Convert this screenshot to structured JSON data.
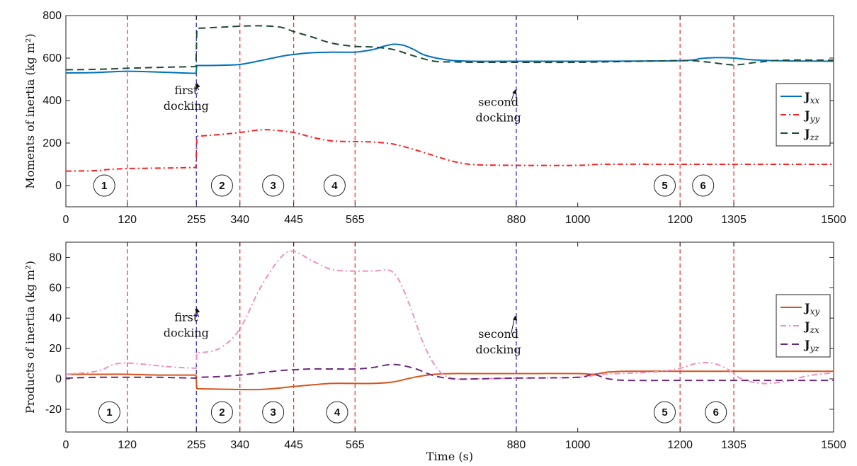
{
  "chart_data": [
    {
      "type": "line",
      "ylabel": "Moments of inertia (kg m²)",
      "xlabel": "",
      "xlim": [
        0,
        1500
      ],
      "ylim": [
        -100,
        800
      ],
      "xticks": [
        0,
        120,
        255,
        340,
        445,
        565,
        880,
        1000,
        1200,
        1305,
        1500
      ],
      "yticks": [
        0,
        200,
        400,
        600,
        800
      ],
      "legend_position": "right",
      "series": [
        {
          "name": "J",
          "sub": "xx",
          "color": "#0072BD",
          "dash": "solid",
          "x": [
            0,
            60,
            120,
            180,
            254,
            256,
            300,
            340,
            380,
            420,
            445,
            480,
            520,
            565,
            600,
            620,
            640,
            660,
            680,
            700,
            730,
            760,
            800,
            880,
            1000,
            1200,
            1240,
            1270,
            1305,
            1340,
            1400,
            1500
          ],
          "y": [
            530,
            532,
            538,
            534,
            528,
            565,
            566,
            570,
            588,
            608,
            617,
            625,
            628,
            628,
            640,
            655,
            665,
            660,
            640,
            615,
            597,
            588,
            585,
            585,
            585,
            588,
            598,
            602,
            600,
            592,
            587,
            585
          ]
        },
        {
          "name": "J",
          "sub": "yy",
          "color": "#FF1F1F",
          "dash": "8,4,2,4",
          "x": [
            0,
            60,
            80,
            120,
            180,
            254,
            256,
            300,
            340,
            380,
            400,
            445,
            480,
            520,
            565,
            600,
            640,
            680,
            720,
            760,
            800,
            880,
            1000,
            1050,
            1200,
            1305,
            1500
          ],
          "y": [
            68,
            70,
            75,
            80,
            82,
            85,
            232,
            240,
            250,
            262,
            262,
            250,
            228,
            210,
            207,
            205,
            195,
            170,
            140,
            112,
            98,
            95,
            95,
            100,
            100,
            100,
            100
          ]
        },
        {
          "name": "J",
          "sub": "zz",
          "color": "#1F4A37",
          "dash": "10,6",
          "x": [
            0,
            60,
            120,
            180,
            254,
            256,
            300,
            340,
            380,
            420,
            445,
            480,
            520,
            565,
            600,
            640,
            680,
            720,
            760,
            800,
            880,
            1000,
            1200,
            1250,
            1305,
            1350,
            1400,
            1500
          ],
          "y": [
            545,
            547,
            552,
            556,
            560,
            740,
            745,
            750,
            752,
            745,
            725,
            700,
            670,
            655,
            652,
            640,
            610,
            585,
            582,
            580,
            580,
            580,
            588,
            582,
            568,
            580,
            590,
            590
          ]
        }
      ],
      "vlines": [
        {
          "x": 120,
          "color": "#FF3030"
        },
        {
          "x": 255,
          "color": "#3030E0"
        },
        {
          "x": 340,
          "color": "#FF3030"
        },
        {
          "x": 445,
          "color": "#FF3030"
        },
        {
          "x": 565,
          "color": "#FF3030"
        },
        {
          "x": 880,
          "color": "#3030E0"
        },
        {
          "x": 1200,
          "color": "#FF3030"
        },
        {
          "x": 1305,
          "color": "#FF3030"
        }
      ],
      "phase_markers": [
        {
          "label": "1",
          "x": 75,
          "y": 0
        },
        {
          "label": "2",
          "x": 305,
          "y": 0
        },
        {
          "label": "3",
          "x": 405,
          "y": 0
        },
        {
          "label": "4",
          "x": 525,
          "y": 0
        },
        {
          "label": "5",
          "x": 1170,
          "y": 0
        },
        {
          "label": "6",
          "x": 1245,
          "y": 0
        }
      ],
      "annotations": [
        {
          "lines": [
            "first",
            "docking"
          ],
          "text_x": 235,
          "text_y": 430,
          "arrow_to_x": 255,
          "arrow_to_y": 485
        },
        {
          "lines": [
            "second",
            "docking"
          ],
          "text_x": 845,
          "text_y": 375,
          "arrow_to_x": 880,
          "arrow_to_y": 455
        }
      ]
    },
    {
      "type": "line",
      "ylabel": "Products of inertia (kg m²)",
      "xlabel": "Time (s)",
      "xlim": [
        0,
        1500
      ],
      "ylim": [
        -35,
        90
      ],
      "xticks": [
        0,
        120,
        255,
        340,
        445,
        565,
        880,
        1000,
        1200,
        1305,
        1500
      ],
      "yticks": [
        -20,
        0,
        20,
        40,
        60,
        80
      ],
      "legend_position": "right",
      "series": [
        {
          "name": "J",
          "sub": "xy",
          "color": "#D95319",
          "dash": "solid",
          "x": [
            0,
            60,
            120,
            180,
            254,
            256,
            300,
            340,
            380,
            420,
            445,
            480,
            520,
            565,
            600,
            640,
            680,
            720,
            760,
            800,
            880,
            1000,
            1030,
            1060,
            1100,
            1200,
            1305,
            1500
          ],
          "y": [
            3,
            3,
            3,
            2.5,
            2.5,
            -6.5,
            -6.8,
            -7,
            -7,
            -6,
            -5,
            -4,
            -3,
            -3,
            -3,
            -2,
            1,
            3,
            3.5,
            3.5,
            3.5,
            3.5,
            3,
            4.5,
            5,
            5,
            5,
            5
          ]
        },
        {
          "name": "J",
          "sub": "zx",
          "color": "#F28FC0",
          "dash": "8,4,2,4",
          "x": [
            0,
            60,
            100,
            140,
            200,
            254,
            256,
            300,
            340,
            380,
            420,
            445,
            480,
            520,
            565,
            600,
            640,
            670,
            700,
            730,
            760,
            800,
            880,
            1000,
            1050,
            1150,
            1200,
            1230,
            1260,
            1290,
            1320,
            1360,
            1400,
            1450,
            1500
          ],
          "y": [
            3,
            5,
            10,
            10,
            8,
            7,
            17,
            20,
            33,
            60,
            80,
            84,
            78,
            72,
            71,
            71,
            70,
            50,
            22,
            5,
            0,
            0,
            0.5,
            1,
            3,
            4.5,
            7,
            10,
            10.5,
            7,
            0,
            -3,
            -2,
            2,
            4
          ]
        },
        {
          "name": "J",
          "sub": "yz",
          "color": "#6C2A7E",
          "dash": "10,6",
          "x": [
            0,
            60,
            120,
            180,
            254,
            256,
            300,
            340,
            380,
            420,
            445,
            480,
            520,
            565,
            600,
            640,
            680,
            720,
            760,
            800,
            880,
            1000,
            1030,
            1060,
            1100,
            1200,
            1305,
            1500
          ],
          "y": [
            0.5,
            1,
            1,
            1,
            0.5,
            1,
            1.5,
            2.5,
            4,
            5.5,
            6,
            6.5,
            6.5,
            6.5,
            7.5,
            9.5,
            7,
            2,
            0,
            0,
            0.5,
            1,
            3,
            0,
            -1,
            -1,
            -1,
            -1
          ]
        }
      ],
      "vlines": [
        {
          "x": 120,
          "color": "#FF3030"
        },
        {
          "x": 255,
          "color": "#3030E0"
        },
        {
          "x": 340,
          "color": "#FF3030"
        },
        {
          "x": 445,
          "color": "#FF3030"
        },
        {
          "x": 565,
          "color": "#FF3030"
        },
        {
          "x": 880,
          "color": "#3030E0"
        },
        {
          "x": 1200,
          "color": "#FF3030"
        },
        {
          "x": 1305,
          "color": "#FF3030"
        }
      ],
      "phase_markers": [
        {
          "label": "1",
          "x": 85,
          "y": -22
        },
        {
          "label": "2",
          "x": 305,
          "y": -22
        },
        {
          "label": "3",
          "x": 405,
          "y": -22
        },
        {
          "label": "4",
          "x": 530,
          "y": -22
        },
        {
          "label": "5",
          "x": 1170,
          "y": -22
        },
        {
          "label": "6",
          "x": 1270,
          "y": -22
        }
      ],
      "annotations": [
        {
          "lines": [
            "first",
            "docking"
          ],
          "text_x": 235,
          "text_y": 38,
          "arrow_to_x": 255,
          "arrow_to_y": 47
        },
        {
          "lines": [
            "second",
            "docking"
          ],
          "text_x": 845,
          "text_y": 27,
          "arrow_to_x": 880,
          "arrow_to_y": 42
        }
      ]
    }
  ]
}
